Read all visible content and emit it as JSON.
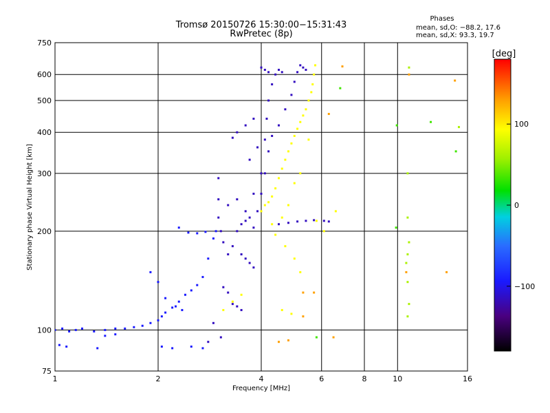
{
  "chart_data": {
    "type": "scatter",
    "title": "Tromsø 20150726 15:30:00−15:31:43",
    "subtitle": "RwPretec (8p)",
    "info": {
      "heading": "Phases",
      "line_o": "mean, sd,O: −88.2, 17.6",
      "line_x": "mean, sd,X:  93.3, 19.7"
    },
    "xlabel": "Frequency [MHz]",
    "ylabel": "Stationary phase Virtual Height [km]",
    "x_scale": "log",
    "y_scale": "log",
    "xlim": [
      1,
      16
    ],
    "ylim": [
      75,
      750
    ],
    "x_ticks": [
      1,
      2,
      4,
      6,
      8,
      10,
      16
    ],
    "y_ticks": [
      75,
      100,
      200,
      300,
      400,
      500,
      600,
      750
    ],
    "grid": true,
    "colorbar": {
      "label": "[deg]",
      "range": [
        -180,
        180
      ],
      "ticks": [
        100,
        0,
        -100
      ]
    },
    "series": [
      {
        "phase": -100,
        "points": [
          [
            1.0,
            100
          ],
          [
            1.05,
            101
          ],
          [
            1.1,
            99
          ],
          [
            1.15,
            100
          ],
          [
            1.2,
            101
          ],
          [
            1.3,
            99
          ],
          [
            1.4,
            100
          ],
          [
            1.5,
            101
          ],
          [
            1.6,
            101
          ],
          [
            1.7,
            102
          ],
          [
            1.8,
            103
          ],
          [
            1.9,
            105
          ],
          [
            2.0,
            107
          ],
          [
            2.05,
            110
          ],
          [
            2.1,
            113
          ],
          [
            2.2,
            117
          ],
          [
            2.3,
            122
          ],
          [
            2.4,
            128
          ],
          [
            2.5,
            132
          ],
          [
            2.6,
            137
          ],
          [
            2.7,
            145
          ],
          [
            2.8,
            165
          ],
          [
            2.9,
            190
          ],
          [
            1.03,
            90
          ],
          [
            1.08,
            89
          ],
          [
            1.33,
            88
          ],
          [
            1.4,
            96
          ],
          [
            1.5,
            97
          ],
          [
            2.05,
            89
          ],
          [
            2.2,
            88
          ],
          [
            2.5,
            89
          ],
          [
            2.7,
            88
          ],
          [
            2.3,
            205
          ],
          [
            2.45,
            198
          ],
          [
            2.6,
            197
          ],
          [
            2.75,
            199
          ],
          [
            2.95,
            200
          ],
          [
            1.9,
            150
          ],
          [
            2.0,
            140
          ],
          [
            2.1,
            125
          ],
          [
            2.25,
            118
          ],
          [
            2.35,
            115
          ]
        ]
      },
      {
        "phase": -120,
        "points": [
          [
            3.0,
            290
          ],
          [
            3.0,
            250
          ],
          [
            3.0,
            220
          ],
          [
            3.05,
            200
          ],
          [
            3.1,
            185
          ],
          [
            3.2,
            170
          ],
          [
            3.3,
            180
          ],
          [
            3.4,
            200
          ],
          [
            3.5,
            210
          ],
          [
            3.6,
            215
          ],
          [
            3.7,
            220
          ],
          [
            3.8,
            205
          ],
          [
            3.9,
            230
          ],
          [
            4.0,
            260
          ],
          [
            4.1,
            300
          ],
          [
            4.2,
            350
          ],
          [
            4.3,
            390
          ],
          [
            4.5,
            420
          ],
          [
            4.7,
            470
          ],
          [
            4.9,
            520
          ],
          [
            5.0,
            570
          ],
          [
            5.1,
            610
          ],
          [
            5.2,
            640
          ],
          [
            5.3,
            630
          ],
          [
            5.4,
            620
          ],
          [
            3.2,
            240
          ],
          [
            3.4,
            250
          ],
          [
            3.6,
            230
          ],
          [
            3.8,
            260
          ],
          [
            4.0,
            300
          ],
          [
            4.1,
            380
          ],
          [
            4.15,
            440
          ],
          [
            4.2,
            500
          ],
          [
            4.3,
            560
          ],
          [
            4.4,
            600
          ],
          [
            4.5,
            620
          ],
          [
            4.6,
            610
          ],
          [
            4.0,
            630
          ],
          [
            4.1,
            620
          ],
          [
            4.2,
            610
          ],
          [
            3.8,
            440
          ],
          [
            3.6,
            420
          ],
          [
            3.4,
            400
          ],
          [
            3.3,
            385
          ],
          [
            3.5,
            170
          ],
          [
            3.6,
            165
          ],
          [
            3.7,
            160
          ],
          [
            3.8,
            155
          ],
          [
            3.1,
            135
          ],
          [
            3.2,
            130
          ],
          [
            3.3,
            120
          ],
          [
            3.4,
            118
          ],
          [
            3.5,
            115
          ],
          [
            2.9,
            105
          ],
          [
            3.05,
            95
          ],
          [
            2.8,
            92
          ],
          [
            4.5,
            210
          ],
          [
            4.8,
            212
          ],
          [
            5.1,
            214
          ],
          [
            5.4,
            215
          ],
          [
            5.7,
            216
          ],
          [
            6.1,
            215
          ],
          [
            6.3,
            214
          ],
          [
            3.7,
            330
          ],
          [
            3.9,
            360
          ]
        ]
      },
      {
        "phase": 95,
        "points": [
          [
            4.0,
            230
          ],
          [
            4.1,
            240
          ],
          [
            4.2,
            245
          ],
          [
            4.3,
            255
          ],
          [
            4.4,
            270
          ],
          [
            4.5,
            290
          ],
          [
            4.6,
            310
          ],
          [
            4.7,
            330
          ],
          [
            4.8,
            350
          ],
          [
            4.9,
            370
          ],
          [
            5.0,
            390
          ],
          [
            5.1,
            410
          ],
          [
            5.2,
            430
          ],
          [
            5.3,
            450
          ],
          [
            5.4,
            470
          ],
          [
            5.5,
            500
          ],
          [
            5.6,
            530
          ],
          [
            5.65,
            560
          ],
          [
            5.7,
            600
          ],
          [
            5.75,
            640
          ],
          [
            4.3,
            210
          ],
          [
            4.6,
            220
          ],
          [
            4.8,
            240
          ],
          [
            5.0,
            280
          ],
          [
            5.2,
            300
          ],
          [
            5.5,
            380
          ],
          [
            3.1,
            115
          ],
          [
            3.3,
            122
          ],
          [
            3.5,
            128
          ],
          [
            4.6,
            115
          ],
          [
            4.9,
            112
          ],
          [
            4.4,
            195
          ],
          [
            4.7,
            180
          ],
          [
            5.0,
            165
          ],
          [
            5.2,
            150
          ],
          [
            5.8,
            215
          ],
          [
            6.1,
            200
          ],
          [
            6.6,
            230
          ]
        ]
      },
      {
        "phase": 130,
        "points": [
          [
            6.3,
            455
          ],
          [
            6.9,
            635
          ],
          [
            10.8,
            600
          ],
          [
            14.7,
            575
          ],
          [
            10.6,
            150
          ],
          [
            13.9,
            150
          ],
          [
            5.3,
            130
          ],
          [
            5.7,
            130
          ],
          [
            4.5,
            92
          ],
          [
            4.8,
            93
          ],
          [
            6.5,
            95
          ],
          [
            5.3,
            110
          ]
        ]
      },
      {
        "phase": 55,
        "points": [
          [
            10.8,
            630
          ],
          [
            10.7,
            300
          ],
          [
            10.7,
            220
          ],
          [
            10.8,
            185
          ],
          [
            10.7,
            170
          ],
          [
            10.6,
            160
          ],
          [
            10.7,
            140
          ],
          [
            10.8,
            120
          ],
          [
            10.7,
            110
          ],
          [
            15.1,
            415
          ]
        ]
      },
      {
        "phase": 20,
        "points": [
          [
            14.8,
            350
          ],
          [
            12.5,
            430
          ],
          [
            9.9,
            205
          ],
          [
            9.95,
            420
          ],
          [
            6.8,
            545
          ],
          [
            5.8,
            95
          ]
        ]
      }
    ]
  }
}
